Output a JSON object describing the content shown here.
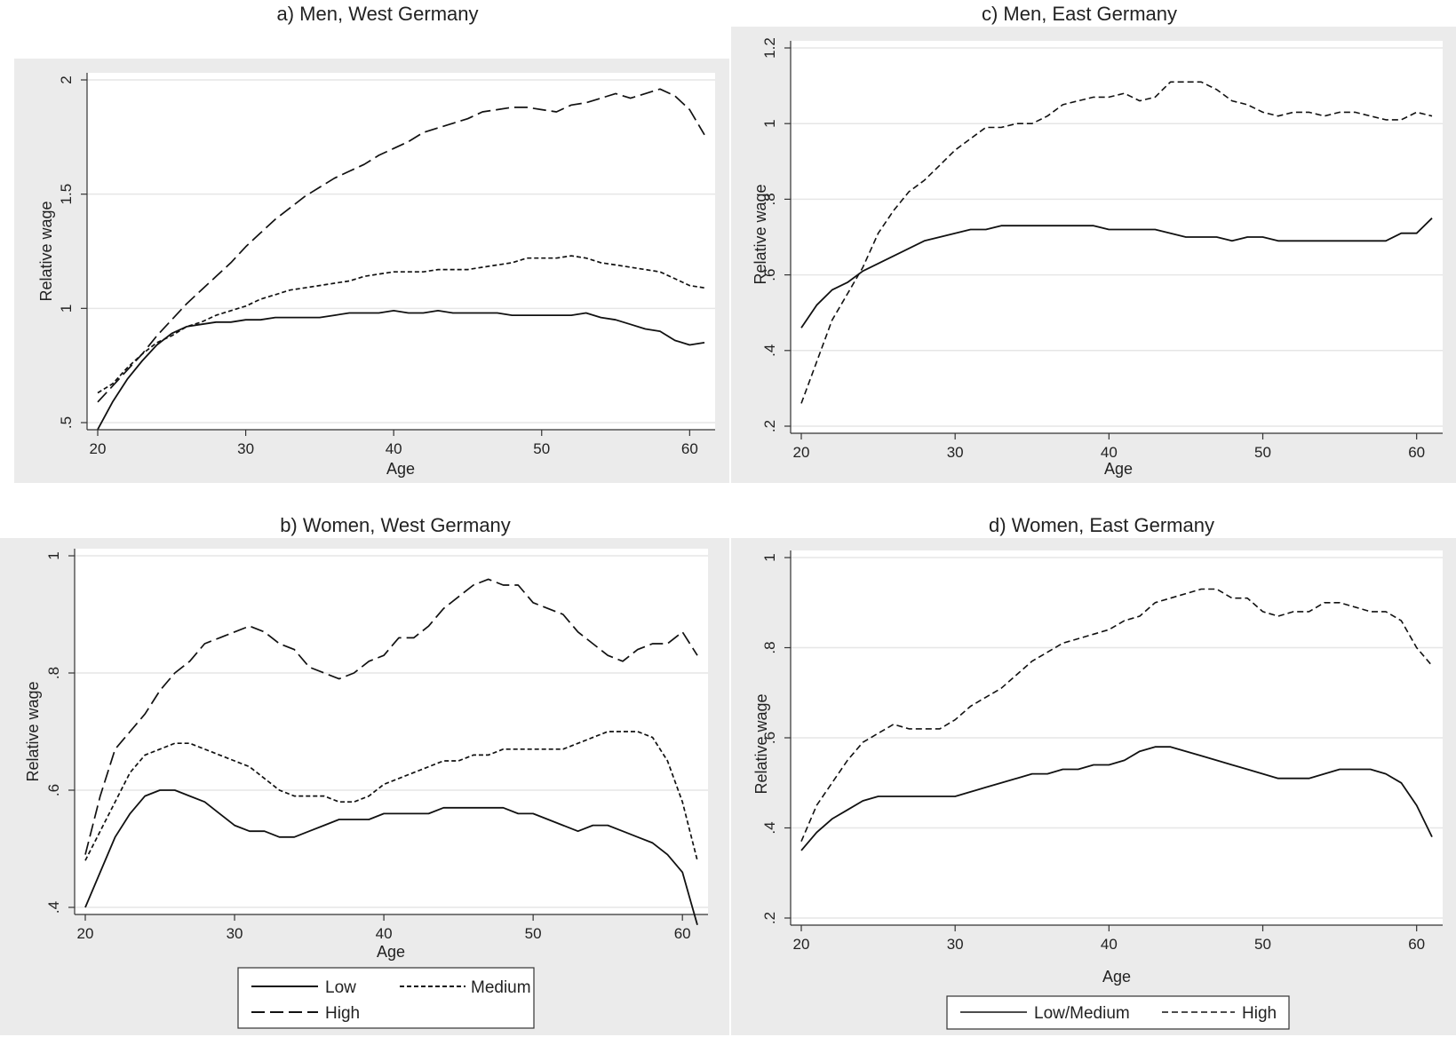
{
  "chart_data": [
    {
      "type": "line",
      "title": "a) Men, West Germany",
      "xlabel": "Age",
      "ylabel": "Relative wage",
      "xlim": [
        20,
        61
      ],
      "ylim": [
        0.5,
        2
      ],
      "xticks": [
        20,
        30,
        40,
        50,
        60
      ],
      "xtick_labels": [
        "20",
        "30",
        "40",
        "50",
        "60"
      ],
      "yticks": [
        0.5,
        1,
        1.5,
        2
      ],
      "ytick_labels": [
        ".5",
        "1",
        "1.5",
        "2"
      ],
      "grid": true,
      "x": [
        20,
        21,
        22,
        23,
        24,
        25,
        26,
        27,
        28,
        29,
        30,
        31,
        32,
        33,
        34,
        35,
        36,
        37,
        38,
        39,
        40,
        41,
        42,
        43,
        44,
        45,
        46,
        47,
        48,
        49,
        50,
        51,
        52,
        53,
        54,
        55,
        56,
        57,
        58,
        59,
        60,
        61
      ],
      "series": [
        {
          "name": "Low",
          "style": "solid",
          "values": [
            0.47,
            0.59,
            0.69,
            0.77,
            0.84,
            0.89,
            0.92,
            0.93,
            0.94,
            0.94,
            0.95,
            0.95,
            0.96,
            0.96,
            0.96,
            0.96,
            0.97,
            0.98,
            0.98,
            0.98,
            0.99,
            0.98,
            0.98,
            0.99,
            0.98,
            0.98,
            0.98,
            0.98,
            0.97,
            0.97,
            0.97,
            0.97,
            0.97,
            0.98,
            0.96,
            0.95,
            0.93,
            0.91,
            0.9,
            0.86,
            0.84,
            0.85
          ]
        },
        {
          "name": "Medium",
          "style": "short-dash",
          "values": [
            0.63,
            0.67,
            0.74,
            0.8,
            0.85,
            0.88,
            0.92,
            0.94,
            0.97,
            0.99,
            1.01,
            1.04,
            1.06,
            1.08,
            1.09,
            1.1,
            1.11,
            1.12,
            1.14,
            1.15,
            1.16,
            1.16,
            1.16,
            1.17,
            1.17,
            1.17,
            1.18,
            1.19,
            1.2,
            1.22,
            1.22,
            1.22,
            1.23,
            1.22,
            1.2,
            1.19,
            1.18,
            1.17,
            1.16,
            1.13,
            1.1,
            1.09
          ]
        },
        {
          "name": "High",
          "style": "long-dash",
          "values": [
            0.59,
            0.66,
            0.73,
            0.8,
            0.88,
            0.95,
            1.02,
            1.08,
            1.14,
            1.2,
            1.27,
            1.33,
            1.39,
            1.44,
            1.49,
            1.53,
            1.57,
            1.6,
            1.63,
            1.67,
            1.7,
            1.73,
            1.77,
            1.79,
            1.81,
            1.83,
            1.86,
            1.87,
            1.88,
            1.88,
            1.87,
            1.86,
            1.89,
            1.9,
            1.92,
            1.94,
            1.92,
            1.94,
            1.96,
            1.93,
            1.87,
            1.76
          ]
        }
      ]
    },
    {
      "type": "line",
      "title": "b) Women, West Germany",
      "xlabel": "Age",
      "ylabel": "Relative wage",
      "xlim": [
        20,
        61
      ],
      "ylim": [
        0.4,
        1
      ],
      "xticks": [
        20,
        30,
        40,
        50,
        60
      ],
      "xtick_labels": [
        "20",
        "30",
        "40",
        "50",
        "60"
      ],
      "yticks": [
        0.4,
        0.6,
        0.8,
        1
      ],
      "ytick_labels": [
        ".4",
        ".6",
        ".8",
        "1"
      ],
      "grid": true,
      "legend": {
        "position": "bottom",
        "items": [
          "Low",
          "Medium",
          "High"
        ]
      },
      "x": [
        20,
        21,
        22,
        23,
        24,
        25,
        26,
        27,
        28,
        29,
        30,
        31,
        32,
        33,
        34,
        35,
        36,
        37,
        38,
        39,
        40,
        41,
        42,
        43,
        44,
        45,
        46,
        47,
        48,
        49,
        50,
        51,
        52,
        53,
        54,
        55,
        56,
        57,
        58,
        59,
        60,
        61
      ],
      "series": [
        {
          "name": "Low",
          "style": "solid",
          "values": [
            0.4,
            0.46,
            0.52,
            0.56,
            0.59,
            0.6,
            0.6,
            0.59,
            0.58,
            0.56,
            0.54,
            0.53,
            0.53,
            0.52,
            0.52,
            0.53,
            0.54,
            0.55,
            0.55,
            0.55,
            0.56,
            0.56,
            0.56,
            0.56,
            0.57,
            0.57,
            0.57,
            0.57,
            0.57,
            0.56,
            0.56,
            0.55,
            0.54,
            0.53,
            0.54,
            0.54,
            0.53,
            0.52,
            0.51,
            0.49,
            0.46,
            0.37
          ]
        },
        {
          "name": "Medium",
          "style": "short-dash",
          "values": [
            0.48,
            0.53,
            0.58,
            0.63,
            0.66,
            0.67,
            0.68,
            0.68,
            0.67,
            0.66,
            0.65,
            0.64,
            0.62,
            0.6,
            0.59,
            0.59,
            0.59,
            0.58,
            0.58,
            0.59,
            0.61,
            0.62,
            0.63,
            0.64,
            0.65,
            0.65,
            0.66,
            0.66,
            0.67,
            0.67,
            0.67,
            0.67,
            0.67,
            0.68,
            0.69,
            0.7,
            0.7,
            0.7,
            0.69,
            0.65,
            0.58,
            0.48
          ]
        },
        {
          "name": "High",
          "style": "long-dash",
          "values": [
            0.49,
            0.59,
            0.67,
            0.7,
            0.73,
            0.77,
            0.8,
            0.82,
            0.85,
            0.86,
            0.87,
            0.88,
            0.87,
            0.85,
            0.84,
            0.81,
            0.8,
            0.79,
            0.8,
            0.82,
            0.83,
            0.86,
            0.86,
            0.88,
            0.91,
            0.93,
            0.95,
            0.96,
            0.95,
            0.95,
            0.92,
            0.91,
            0.9,
            0.87,
            0.85,
            0.83,
            0.82,
            0.84,
            0.85,
            0.85,
            0.87,
            0.83
          ]
        }
      ]
    },
    {
      "type": "line",
      "title": "c) Men, East Germany",
      "xlabel": "Age",
      "ylabel": "Relative wage",
      "xlim": [
        20,
        61
      ],
      "ylim": [
        0.2,
        1.2
      ],
      "xticks": [
        20,
        30,
        40,
        50,
        60
      ],
      "xtick_labels": [
        "20",
        "30",
        "40",
        "50",
        "60"
      ],
      "yticks": [
        0.2,
        0.4,
        0.6,
        0.8,
        1,
        1.2
      ],
      "ytick_labels": [
        ".2",
        ".4",
        ".6",
        ".8",
        "1",
        "1.2"
      ],
      "grid": true,
      "x": [
        20,
        21,
        22,
        23,
        24,
        25,
        26,
        27,
        28,
        29,
        30,
        31,
        32,
        33,
        34,
        35,
        36,
        37,
        38,
        39,
        40,
        41,
        42,
        43,
        44,
        45,
        46,
        47,
        48,
        49,
        50,
        51,
        52,
        53,
        54,
        55,
        56,
        57,
        58,
        59,
        60,
        61
      ],
      "series": [
        {
          "name": "Low/Medium",
          "style": "solid",
          "values": [
            0.46,
            0.52,
            0.56,
            0.58,
            0.61,
            0.63,
            0.65,
            0.67,
            0.69,
            0.7,
            0.71,
            0.72,
            0.72,
            0.73,
            0.73,
            0.73,
            0.73,
            0.73,
            0.73,
            0.73,
            0.72,
            0.72,
            0.72,
            0.72,
            0.71,
            0.7,
            0.7,
            0.7,
            0.69,
            0.7,
            0.7,
            0.69,
            0.69,
            0.69,
            0.69,
            0.69,
            0.69,
            0.69,
            0.69,
            0.71,
            0.71,
            0.75
          ]
        },
        {
          "name": "High",
          "style": "dash",
          "values": [
            0.26,
            0.37,
            0.48,
            0.55,
            0.62,
            0.71,
            0.77,
            0.82,
            0.85,
            0.89,
            0.93,
            0.96,
            0.99,
            0.99,
            1.0,
            1.0,
            1.02,
            1.05,
            1.06,
            1.07,
            1.07,
            1.08,
            1.06,
            1.07,
            1.11,
            1.11,
            1.11,
            1.09,
            1.06,
            1.05,
            1.03,
            1.02,
            1.03,
            1.03,
            1.02,
            1.03,
            1.03,
            1.02,
            1.01,
            1.01,
            1.03,
            1.02
          ]
        }
      ]
    },
    {
      "type": "line",
      "title": "d) Women, East Germany",
      "xlabel": "Age",
      "ylabel": "Relative wage",
      "xlim": [
        20,
        61
      ],
      "ylim": [
        0.2,
        1
      ],
      "xticks": [
        20,
        30,
        40,
        50,
        60
      ],
      "xtick_labels": [
        "20",
        "30",
        "40",
        "50",
        "60"
      ],
      "yticks": [
        0.2,
        0.4,
        0.6,
        0.8,
        1
      ],
      "ytick_labels": [
        ".2",
        ".4",
        ".6",
        ".8",
        "1"
      ],
      "grid": true,
      "legend": {
        "position": "bottom",
        "items": [
          "Low/Medium",
          "High"
        ]
      },
      "x": [
        20,
        21,
        22,
        23,
        24,
        25,
        26,
        27,
        28,
        29,
        30,
        31,
        32,
        33,
        34,
        35,
        36,
        37,
        38,
        39,
        40,
        41,
        42,
        43,
        44,
        45,
        46,
        47,
        48,
        49,
        50,
        51,
        52,
        53,
        54,
        55,
        56,
        57,
        58,
        59,
        60,
        61
      ],
      "series": [
        {
          "name": "Low/Medium",
          "style": "solid",
          "values": [
            0.35,
            0.39,
            0.42,
            0.44,
            0.46,
            0.47,
            0.47,
            0.47,
            0.47,
            0.47,
            0.47,
            0.48,
            0.49,
            0.5,
            0.51,
            0.52,
            0.52,
            0.53,
            0.53,
            0.54,
            0.54,
            0.55,
            0.57,
            0.58,
            0.58,
            0.57,
            0.56,
            0.55,
            0.54,
            0.53,
            0.52,
            0.51,
            0.51,
            0.51,
            0.52,
            0.53,
            0.53,
            0.53,
            0.52,
            0.5,
            0.45,
            0.38
          ]
        },
        {
          "name": "High",
          "style": "dash",
          "values": [
            0.37,
            0.45,
            0.5,
            0.55,
            0.59,
            0.61,
            0.63,
            0.62,
            0.62,
            0.62,
            0.64,
            0.67,
            0.69,
            0.71,
            0.74,
            0.77,
            0.79,
            0.81,
            0.82,
            0.83,
            0.84,
            0.86,
            0.87,
            0.9,
            0.91,
            0.92,
            0.93,
            0.93,
            0.91,
            0.91,
            0.88,
            0.87,
            0.88,
            0.88,
            0.9,
            0.9,
            0.89,
            0.88,
            0.88,
            0.86,
            0.8,
            0.76
          ]
        }
      ]
    }
  ]
}
